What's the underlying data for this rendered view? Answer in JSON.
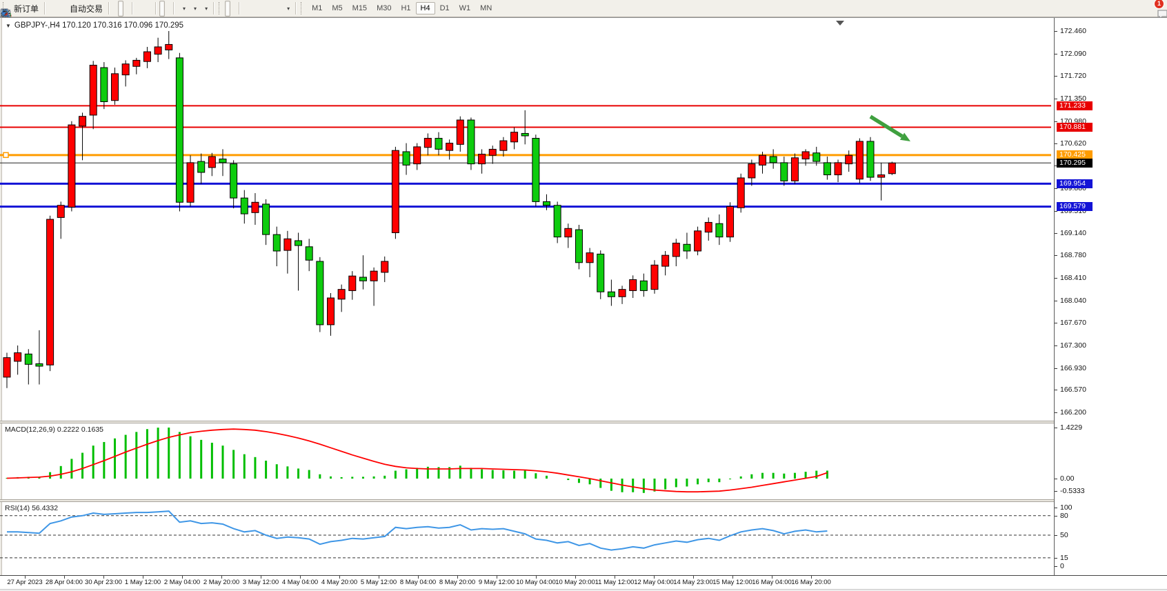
{
  "toolbar": {
    "new_order_label": "新订单",
    "autotrading_label": "自动交易",
    "timeframes": [
      "M1",
      "M5",
      "M15",
      "M30",
      "H1",
      "H4",
      "D1",
      "W1",
      "MN"
    ],
    "active_timeframe": "H4",
    "notification_count": "1",
    "icons": [
      "new-order-icon",
      "news-horn-icon",
      "terminal-icon",
      "signal-icon",
      "autotrading-icon",
      "bar-chart-icon",
      "candlestick-chart-icon",
      "line-chart-icon",
      "zoom-in-icon",
      "zoom-out-icon",
      "tile-windows-icon",
      "auto-scroll-icon",
      "chart-shift-icon",
      "indicators-icon",
      "periods-icon",
      "templates-icon",
      "cursor-icon",
      "crosshair-icon",
      "vertical-line-icon",
      "horizontal-line-icon",
      "trendline-icon",
      "channel-icon",
      "fibonacci-icon",
      "text-icon",
      "text-label-icon",
      "arrows-icon",
      "search-icon",
      "chat-icon"
    ]
  },
  "chart": {
    "title": "GBPJPY-,H4  170.120 170.316 170.096 170.295",
    "symbol": "GBPJPY-",
    "period": "H4",
    "open": "170.120",
    "high": "170.316",
    "low": "170.096",
    "close": "170.295",
    "price_axis_labels": [
      "172.460",
      "172.090",
      "171.720",
      "171.350",
      "170.980",
      "170.620",
      "170.250",
      "169.880",
      "169.510",
      "169.140",
      "168.780",
      "168.410",
      "168.040",
      "167.670",
      "167.300",
      "166.930",
      "166.570",
      "166.200"
    ],
    "time_axis_labels": [
      "27 Apr 2023",
      "28 Apr 04:00",
      "30 Apr 23:00",
      "1 May 12:00",
      "2 May 04:00",
      "2 May 20:00",
      "3 May 12:00",
      "4 May 04:00",
      "4 May 20:00",
      "5 May 12:00",
      "8 May 04:00",
      "8 May 20:00",
      "9 May 12:00",
      "10 May 04:00",
      "10 May 20:00",
      "11 May 12:00",
      "12 May 04:00",
      "14 May 23:00",
      "15 May 12:00",
      "16 May 04:00",
      "16 May 20:00"
    ],
    "horizontal_lines": [
      {
        "price": 171.233,
        "label": "171.233",
        "color": "#e80000",
        "width": 2
      },
      {
        "price": 170.881,
        "label": "170.881",
        "color": "#e80000",
        "width": 2
      },
      {
        "price": 170.425,
        "label": "170.425",
        "color": "#ff9c00",
        "width": 3,
        "handle": true
      },
      {
        "price": 169.954,
        "label": "169.954",
        "color": "#1313d6",
        "width": 3
      },
      {
        "price": 169.579,
        "label": "169.579",
        "color": "#1313d6",
        "width": 3
      }
    ],
    "current_price": {
      "price": 170.295,
      "label": "170.295",
      "badge_color": "#000000"
    },
    "colors": {
      "up": "#ff0000",
      "down": "#0ecc0e",
      "wick": "#000000",
      "rsi": "#3e96e6",
      "macd_hist": "#00be00",
      "macd_signal": "#ff0000",
      "arrow": "#3fa03f"
    }
  },
  "chart_data": {
    "type": "candlestick",
    "symbol": "GBPJPY-",
    "period": "H4",
    "note": "Chinese color convention: red = bullish (up), green = bearish (down). Values are [open, high, low, close], estimated from pixels.",
    "price_range": [
      166.2,
      172.65
    ],
    "candles": [
      [
        166.78,
        167.18,
        166.6,
        167.1
      ],
      [
        167.04,
        167.3,
        166.82,
        167.18
      ],
      [
        167.16,
        167.24,
        166.66,
        166.99
      ],
      [
        167.0,
        167.55,
        166.66,
        166.96
      ],
      [
        166.98,
        169.43,
        166.88,
        169.37
      ],
      [
        169.4,
        169.66,
        169.05,
        169.6
      ],
      [
        169.57,
        170.98,
        169.5,
        170.92
      ],
      [
        170.9,
        171.12,
        170.34,
        171.06
      ],
      [
        171.08,
        171.97,
        170.85,
        171.9
      ],
      [
        171.86,
        171.95,
        171.18,
        171.3
      ],
      [
        171.32,
        171.86,
        171.25,
        171.76
      ],
      [
        171.74,
        171.98,
        171.55,
        171.92
      ],
      [
        171.88,
        172.02,
        171.75,
        171.98
      ],
      [
        171.96,
        172.2,
        171.85,
        172.12
      ],
      [
        172.08,
        172.35,
        171.95,
        172.2
      ],
      [
        172.15,
        172.46,
        172.0,
        172.24
      ],
      [
        172.02,
        172.1,
        169.5,
        169.65
      ],
      [
        169.65,
        170.42,
        169.58,
        170.3
      ],
      [
        170.32,
        170.45,
        169.95,
        170.14
      ],
      [
        170.22,
        170.46,
        170.08,
        170.4
      ],
      [
        170.36,
        170.52,
        170.08,
        170.3
      ],
      [
        170.28,
        170.34,
        169.55,
        169.72
      ],
      [
        169.72,
        169.85,
        169.3,
        169.46
      ],
      [
        169.48,
        169.8,
        169.28,
        169.65
      ],
      [
        169.62,
        169.7,
        168.95,
        169.12
      ],
      [
        169.12,
        169.25,
        168.6,
        168.85
      ],
      [
        168.86,
        169.18,
        168.48,
        169.05
      ],
      [
        169.02,
        169.15,
        168.2,
        168.94
      ],
      [
        168.92,
        169.05,
        168.52,
        168.7
      ],
      [
        168.68,
        168.75,
        167.52,
        167.64
      ],
      [
        167.64,
        168.16,
        167.46,
        168.08
      ],
      [
        168.06,
        168.3,
        167.85,
        168.22
      ],
      [
        168.2,
        168.52,
        168.05,
        168.44
      ],
      [
        168.42,
        168.78,
        168.22,
        168.36
      ],
      [
        168.36,
        168.58,
        167.95,
        168.52
      ],
      [
        168.5,
        168.76,
        168.34,
        168.68
      ],
      [
        169.15,
        170.56,
        169.05,
        170.5
      ],
      [
        170.48,
        170.62,
        170.1,
        170.26
      ],
      [
        170.28,
        170.62,
        170.18,
        170.56
      ],
      [
        170.55,
        170.78,
        170.42,
        170.7
      ],
      [
        170.7,
        170.8,
        170.42,
        170.52
      ],
      [
        170.5,
        170.68,
        170.35,
        170.62
      ],
      [
        170.6,
        171.06,
        170.48,
        171.0
      ],
      [
        171.0,
        171.04,
        170.18,
        170.28
      ],
      [
        170.28,
        170.52,
        170.12,
        170.44
      ],
      [
        170.42,
        170.58,
        170.28,
        170.52
      ],
      [
        170.5,
        170.72,
        170.4,
        170.66
      ],
      [
        170.64,
        170.88,
        170.52,
        170.8
      ],
      [
        170.78,
        171.16,
        170.6,
        170.74
      ],
      [
        170.7,
        170.76,
        169.58,
        169.66
      ],
      [
        169.66,
        169.78,
        169.52,
        169.6
      ],
      [
        169.6,
        169.66,
        168.98,
        169.08
      ],
      [
        169.08,
        169.3,
        168.9,
        169.22
      ],
      [
        169.2,
        169.28,
        168.55,
        168.66
      ],
      [
        168.66,
        168.9,
        168.42,
        168.82
      ],
      [
        168.8,
        168.86,
        168.06,
        168.18
      ],
      [
        168.18,
        168.38,
        167.95,
        168.1
      ],
      [
        168.1,
        168.28,
        167.98,
        168.22
      ],
      [
        168.2,
        168.45,
        168.08,
        168.38
      ],
      [
        168.36,
        168.48,
        168.1,
        168.2
      ],
      [
        168.22,
        168.7,
        168.15,
        168.62
      ],
      [
        168.6,
        168.85,
        168.45,
        168.78
      ],
      [
        168.76,
        169.05,
        168.6,
        168.98
      ],
      [
        168.96,
        169.15,
        168.72,
        168.85
      ],
      [
        168.85,
        169.25,
        168.78,
        169.18
      ],
      [
        169.16,
        169.4,
        169.02,
        169.32
      ],
      [
        169.3,
        169.45,
        168.95,
        169.08
      ],
      [
        169.08,
        169.65,
        169.0,
        169.58
      ],
      [
        169.56,
        170.12,
        169.48,
        170.05
      ],
      [
        170.05,
        170.35,
        169.92,
        170.28
      ],
      [
        170.26,
        170.48,
        170.12,
        170.42
      ],
      [
        170.4,
        170.52,
        170.2,
        170.3
      ],
      [
        170.3,
        170.4,
        169.92,
        170.0
      ],
      [
        170.0,
        170.45,
        169.95,
        170.38
      ],
      [
        170.36,
        170.52,
        170.25,
        170.48
      ],
      [
        170.46,
        170.56,
        170.25,
        170.32
      ],
      [
        170.3,
        170.4,
        170.02,
        170.1
      ],
      [
        170.1,
        170.35,
        169.98,
        170.3
      ],
      [
        170.28,
        170.5,
        170.15,
        170.42
      ],
      [
        170.03,
        170.7,
        169.96,
        170.65
      ],
      [
        170.65,
        170.72,
        170.0,
        170.06
      ],
      [
        170.06,
        170.3,
        169.68,
        170.1
      ],
      [
        170.12,
        170.316,
        170.096,
        170.295
      ]
    ]
  },
  "macd": {
    "label": "MACD(12,26,9) 0.2222 0.1635",
    "params": "12,26,9",
    "value": "0.2222",
    "signal_value": "0.1635",
    "axis_labels": [
      "1.4229",
      "0.00",
      "-0.5333"
    ],
    "histogram": [
      0.02,
      0.04,
      0.05,
      0.04,
      0.18,
      0.35,
      0.55,
      0.72,
      0.92,
      1.02,
      1.12,
      1.22,
      1.3,
      1.38,
      1.42,
      1.4229,
      1.3,
      1.18,
      1.08,
      1.0,
      0.92,
      0.8,
      0.68,
      0.6,
      0.5,
      0.4,
      0.34,
      0.28,
      0.24,
      0.12,
      0.06,
      0.04,
      0.05,
      0.05,
      0.06,
      0.08,
      0.22,
      0.26,
      0.3,
      0.33,
      0.32,
      0.32,
      0.36,
      0.3,
      0.26,
      0.24,
      0.23,
      0.22,
      0.24,
      0.15,
      0.08,
      0.0,
      -0.04,
      -0.12,
      -0.16,
      -0.26,
      -0.34,
      -0.38,
      -0.38,
      -0.4,
      -0.36,
      -0.3,
      -0.24,
      -0.22,
      -0.16,
      -0.1,
      -0.1,
      -0.02,
      0.06,
      0.12,
      0.16,
      0.16,
      0.14,
      0.16,
      0.19,
      0.22,
      0.2222,
      null,
      null,
      null,
      null,
      null,
      null
    ],
    "signal": [
      0.01,
      0.02,
      0.03,
      0.04,
      0.07,
      0.12,
      0.19,
      0.28,
      0.39,
      0.5,
      0.62,
      0.74,
      0.85,
      0.96,
      1.06,
      1.15,
      1.22,
      1.28,
      1.32,
      1.35,
      1.37,
      1.38,
      1.37,
      1.35,
      1.31,
      1.26,
      1.2,
      1.13,
      1.05,
      0.96,
      0.86,
      0.76,
      0.66,
      0.57,
      0.48,
      0.4,
      0.34,
      0.3,
      0.28,
      0.27,
      0.27,
      0.27,
      0.28,
      0.28,
      0.28,
      0.27,
      0.26,
      0.25,
      0.24,
      0.22,
      0.19,
      0.15,
      0.1,
      0.05,
      0.0,
      -0.06,
      -0.12,
      -0.18,
      -0.23,
      -0.28,
      -0.32,
      -0.34,
      -0.36,
      -0.37,
      -0.37,
      -0.36,
      -0.35,
      -0.32,
      -0.28,
      -0.24,
      -0.19,
      -0.14,
      -0.09,
      -0.04,
      0.01,
      0.06,
      0.1635,
      null,
      null,
      null,
      null,
      null,
      null
    ]
  },
  "rsi": {
    "label": "RSI(14) 56.4332",
    "period": "14",
    "value": "56.4332",
    "axis_labels": [
      "100",
      "80",
      "50",
      "15",
      "0"
    ],
    "levels": [
      80,
      50,
      15
    ],
    "values": [
      55,
      55,
      54,
      53,
      68,
      72,
      78,
      80,
      84,
      82,
      83,
      84,
      85,
      85,
      86,
      87,
      70,
      72,
      68,
      69,
      67,
      60,
      55,
      57,
      50,
      45,
      47,
      46,
      44,
      36,
      40,
      42,
      45,
      44,
      46,
      48,
      62,
      60,
      62,
      63,
      61,
      62,
      66,
      58,
      60,
      59,
      60,
      56,
      52,
      44,
      42,
      38,
      40,
      34,
      37,
      30,
      27,
      29,
      32,
      30,
      35,
      38,
      41,
      39,
      43,
      45,
      42,
      49,
      55,
      58,
      60,
      57,
      52,
      56,
      58,
      55,
      56.4332,
      null,
      null,
      null,
      null,
      null,
      null
    ]
  }
}
